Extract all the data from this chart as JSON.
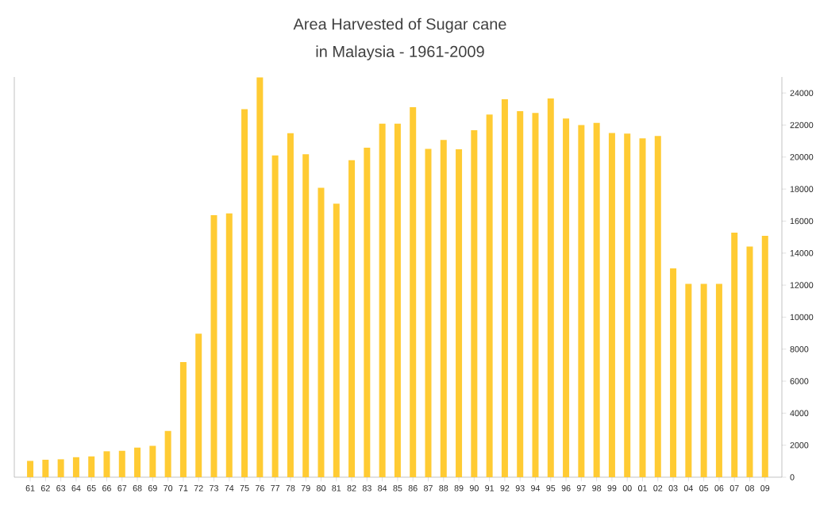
{
  "chart_data": {
    "type": "bar",
    "title": "Area Harvested of Sugar cane",
    "subtitle": "in Malaysia - 1961-2009",
    "categories": [
      "61",
      "62",
      "63",
      "64",
      "65",
      "66",
      "67",
      "68",
      "69",
      "70",
      "71",
      "72",
      "73",
      "74",
      "75",
      "76",
      "77",
      "78",
      "79",
      "80",
      "81",
      "82",
      "83",
      "84",
      "85",
      "86",
      "87",
      "88",
      "89",
      "90",
      "91",
      "92",
      "93",
      "94",
      "95",
      "96",
      "97",
      "98",
      "99",
      "00",
      "01",
      "02",
      "03",
      "04",
      "05",
      "06",
      "07",
      "08",
      "09"
    ],
    "values": [
      1020,
      1090,
      1120,
      1250,
      1300,
      1620,
      1650,
      1850,
      1960,
      2890,
      7190,
      8960,
      16370,
      16480,
      22990,
      24970,
      20100,
      21490,
      20180,
      18080,
      17090,
      19800,
      20590,
      22090,
      22090,
      23120,
      20510,
      21070,
      20480,
      21680,
      22660,
      23610,
      22870,
      22760,
      23660,
      22410,
      22000,
      22140,
      21500,
      21470,
      21170,
      21320,
      13050,
      12080,
      12080,
      12080,
      15280,
      14410,
      15080
    ],
    "color": "#ffcb33",
    "ylim": [
      0,
      25000
    ],
    "yticks": [
      0,
      2000,
      4000,
      6000,
      8000,
      10000,
      12000,
      14000,
      16000,
      18000,
      20000,
      22000,
      24000
    ],
    "grid": false
  }
}
